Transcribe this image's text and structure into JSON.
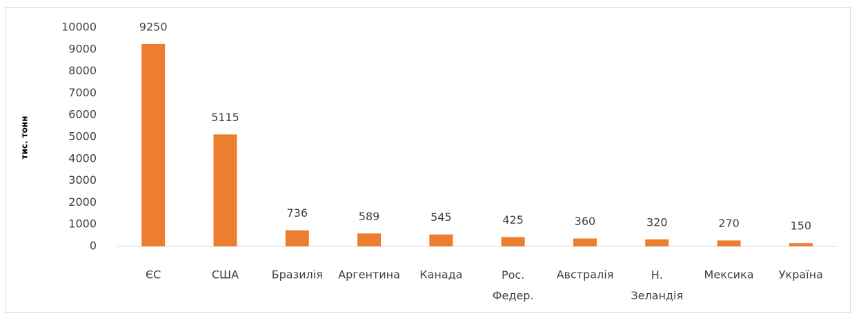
{
  "chart_data": {
    "type": "bar",
    "y_label": "тис. тонн",
    "categories": [
      "ЄС",
      "США",
      "Бразилія",
      "Аргентина",
      "Канада",
      "Рос. Федер.",
      "Австралія",
      "Н. Зеландія",
      "Мексика",
      "Україна"
    ],
    "values": [
      9250,
      5115,
      736,
      589,
      545,
      425,
      360,
      320,
      270,
      150
    ],
    "color": "#ed7d31",
    "ylim": [
      0,
      10000
    ],
    "yticks": [
      0,
      1000,
      2000,
      3000,
      4000,
      5000,
      6000,
      7000,
      8000,
      9000,
      10000
    ],
    "grid": false
  }
}
